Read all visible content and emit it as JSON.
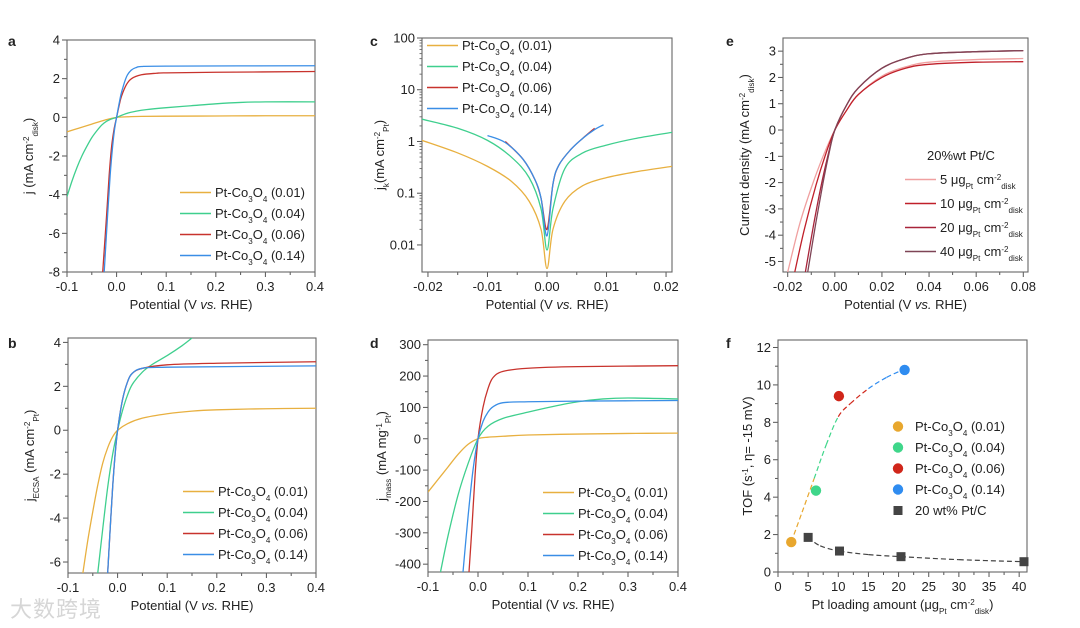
{
  "watermark": "大数跨境",
  "chart_data": [
    {
      "id": "a",
      "panel_label": "a",
      "type": "line",
      "xlabel": "Potential (V ~{vs.} RHE)",
      "ylabel": "j (mA cm^{-2}_{disk})",
      "xlim": [
        -0.1,
        0.4
      ],
      "ylim": [
        -8,
        4
      ],
      "yscale": "linear",
      "xticks": [
        -0.1,
        0.0,
        0.1,
        0.2,
        0.3,
        0.4
      ],
      "xtick_labels": [
        "-0.1",
        "0.0",
        "0.1",
        "0.2",
        "0.3",
        "0.4"
      ],
      "yticks": [
        -8,
        -6,
        -4,
        -2,
        0,
        2,
        4
      ],
      "ytick_labels": [
        "-8",
        "-6",
        "-4",
        "-2",
        "0",
        "2",
        "4"
      ],
      "legend_placement": "bottom-right",
      "series": [
        {
          "name": "Pt-Co_{3}O_{4} (0.01)",
          "color": "#e8b040",
          "x": [
            -0.1,
            -0.075,
            -0.05,
            -0.025,
            0,
            0.025,
            0.05,
            0.1,
            0.2,
            0.3,
            0.4
          ],
          "y": [
            -0.75,
            -0.55,
            -0.35,
            -0.15,
            0,
            0.03,
            0.05,
            0.06,
            0.07,
            0.08,
            0.08
          ]
        },
        {
          "name": "Pt-Co_{3}O_{4} (0.04)",
          "color": "#3fcf8e",
          "x": [
            -0.1,
            -0.09,
            -0.08,
            -0.07,
            -0.06,
            -0.05,
            -0.04,
            -0.03,
            -0.02,
            -0.01,
            0,
            0.02,
            0.04,
            0.06,
            0.1,
            0.15,
            0.2,
            0.25,
            0.3,
            0.4
          ],
          "y": [
            -4.1,
            -3.3,
            -2.6,
            -2.0,
            -1.5,
            -1.05,
            -0.7,
            -0.4,
            -0.2,
            -0.08,
            0,
            0.2,
            0.32,
            0.4,
            0.5,
            0.6,
            0.7,
            0.77,
            0.8,
            0.8
          ]
        },
        {
          "name": "Pt-Co_{3}O_{4} (0.06)",
          "color": "#c8332d",
          "x": [
            -0.028,
            -0.02,
            -0.015,
            -0.01,
            -0.005,
            0,
            0.005,
            0.01,
            0.02,
            0.03,
            0.05,
            0.08,
            0.1,
            0.2,
            0.4
          ],
          "y": [
            -8,
            -5,
            -3,
            -1.5,
            -0.6,
            0,
            0.6,
            1.1,
            1.7,
            2.0,
            2.2,
            2.28,
            2.3,
            2.33,
            2.37
          ]
        },
        {
          "name": "Pt-Co_{3}O_{4} (0.14)",
          "color": "#3a8ee6",
          "x": [
            -0.025,
            -0.018,
            -0.013,
            -0.008,
            -0.004,
            0,
            0.005,
            0.01,
            0.02,
            0.03,
            0.04,
            0.05,
            0.1,
            0.4
          ],
          "y": [
            -8,
            -5,
            -3,
            -1.5,
            -0.6,
            0,
            0.7,
            1.3,
            2.1,
            2.45,
            2.58,
            2.63,
            2.65,
            2.67
          ]
        }
      ]
    },
    {
      "id": "b",
      "panel_label": "b",
      "type": "line",
      "xlabel": "Potential (V ~{vs.} RHE)",
      "ylabel": "j_{ECSA} (mA cm^{-2}_{Pt})",
      "xlim": [
        -0.1,
        0.4
      ],
      "ylim": [
        -6.5,
        4.2
      ],
      "yscale": "linear",
      "xticks": [
        -0.1,
        0.0,
        0.1,
        0.2,
        0.3,
        0.4
      ],
      "xtick_labels": [
        "-0.1",
        "0.0",
        "0.1",
        "0.2",
        "0.3",
        "0.4"
      ],
      "yticks": [
        -6,
        -4,
        -2,
        0,
        2,
        4
      ],
      "ytick_labels": [
        "-6",
        "-4",
        "-2",
        "0",
        "2",
        "4"
      ],
      "legend_placement": "bottom-right",
      "series": [
        {
          "name": "Pt-Co_{3}O_{4} (0.01)",
          "color": "#e8b040",
          "x": [
            -0.07,
            -0.06,
            -0.05,
            -0.04,
            -0.03,
            -0.02,
            -0.01,
            0,
            0.02,
            0.05,
            0.1,
            0.15,
            0.2,
            0.3,
            0.4
          ],
          "y": [
            -6.5,
            -5,
            -3.7,
            -2.5,
            -1.5,
            -0.8,
            -0.3,
            0,
            0.3,
            0.55,
            0.75,
            0.87,
            0.93,
            0.98,
            1.0
          ]
        },
        {
          "name": "Pt-Co_{3}O_{4} (0.04)",
          "color": "#3fcf8e",
          "x": [
            -0.04,
            -0.03,
            -0.02,
            -0.01,
            0,
            0.01,
            0.02,
            0.03,
            0.05,
            0.07,
            0.1,
            0.13,
            0.15
          ],
          "y": [
            -6.5,
            -4.5,
            -2.6,
            -1.1,
            0,
            0.9,
            1.6,
            2.1,
            2.65,
            3.0,
            3.4,
            3.85,
            4.2
          ]
        },
        {
          "name": "Pt-Co_{3}O_{4} (0.06)",
          "color": "#c8332d",
          "x": [
            -0.02,
            -0.015,
            -0.01,
            -0.005,
            0,
            0.01,
            0.02,
            0.03,
            0.05,
            0.1,
            0.2,
            0.4
          ],
          "y": [
            -6.5,
            -4.5,
            -2.6,
            -1.1,
            0,
            1.4,
            2.2,
            2.6,
            2.82,
            2.98,
            3.05,
            3.12
          ]
        },
        {
          "name": "Pt-Co_{3}O_{4} (0.14)",
          "color": "#3a8ee6",
          "x": [
            -0.02,
            -0.015,
            -0.01,
            -0.005,
            0,
            0.01,
            0.02,
            0.03,
            0.05,
            0.1,
            0.4
          ],
          "y": [
            -6.5,
            -4.5,
            -2.6,
            -1.1,
            0,
            1.4,
            2.2,
            2.6,
            2.82,
            2.87,
            2.93
          ]
        }
      ]
    },
    {
      "id": "c",
      "panel_label": "c",
      "type": "line",
      "xlabel": "Potential (V ~{vs.} RHE)",
      "ylabel": "j_{k}(mA cm^{-2}_{Pt})",
      "xlim": [
        -0.021,
        0.021
      ],
      "ylim": [
        0.003,
        100
      ],
      "yscale": "log",
      "xticks": [
        -0.02,
        -0.01,
        0,
        0.01,
        0.02
      ],
      "xtick_labels": [
        "-0.02",
        "-0.01",
        "0.00",
        "0.01",
        "0.02"
      ],
      "yticks": [
        0.01,
        0.1,
        1,
        10,
        100
      ],
      "ytick_labels": [
        "0.01",
        "0.1",
        "1",
        "10",
        "100"
      ],
      "legend_placement": "top-left",
      "series": [
        {
          "name": "Pt-Co_{3}O_{4} (0.01)",
          "color": "#e8b040",
          "x": [
            -0.021,
            -0.015,
            -0.01,
            -0.006,
            -0.003,
            -0.001,
            0,
            0.001,
            0.003,
            0.006,
            0.01,
            0.015,
            0.021
          ],
          "y": [
            1.05,
            0.6,
            0.33,
            0.17,
            0.07,
            0.02,
            0.0035,
            0.02,
            0.07,
            0.14,
            0.2,
            0.26,
            0.33
          ]
        },
        {
          "name": "Pt-Co_{3}O_{4} (0.04)",
          "color": "#3fcf8e",
          "x": [
            -0.021,
            -0.015,
            -0.01,
            -0.006,
            -0.003,
            -0.001,
            0,
            0.001,
            0.003,
            0.006,
            0.01,
            0.015,
            0.021
          ],
          "y": [
            2.7,
            1.8,
            1.05,
            0.5,
            0.2,
            0.05,
            0.008,
            0.05,
            0.3,
            0.6,
            0.85,
            1.15,
            1.5
          ]
        },
        {
          "name": "Pt-Co_{3}O_{4} (0.06)",
          "color": "#c8332d",
          "x": [
            -0.007,
            -0.004,
            -0.002,
            -0.001,
            0,
            0.001,
            0.002,
            0.004,
            0.006,
            0.008
          ],
          "y": [
            1.0,
            0.45,
            0.18,
            0.08,
            0.02,
            0.15,
            0.35,
            0.7,
            1.15,
            1.8
          ]
        },
        {
          "name": "Pt-Co_{3}O_{4} (0.14)",
          "color": "#3a8ee6",
          "x": [
            -0.01,
            -0.007,
            -0.004,
            -0.002,
            -0.001,
            0,
            0.001,
            0.002,
            0.004,
            0.006,
            0.008,
            0.0095
          ],
          "y": [
            1.3,
            0.95,
            0.45,
            0.18,
            0.08,
            0.015,
            0.15,
            0.35,
            0.7,
            1.15,
            1.7,
            2.1
          ]
        }
      ]
    },
    {
      "id": "d",
      "panel_label": "d",
      "type": "line",
      "xlabel": "Potential (V ~{vs.} RHE)",
      "ylabel": "j_{mass} (mA mg^{-1}_{Pt})",
      "xlim": [
        -0.1,
        0.4
      ],
      "ylim": [
        -425,
        315
      ],
      "yscale": "linear",
      "xticks": [
        -0.1,
        0.0,
        0.1,
        0.2,
        0.3,
        0.4
      ],
      "xtick_labels": [
        "-0.1",
        "0.0",
        "0.1",
        "0.2",
        "0.3",
        "0.4"
      ],
      "yticks": [
        -400,
        -300,
        -200,
        -100,
        0,
        100,
        200,
        300
      ],
      "ytick_labels": [
        "-400",
        "-300",
        "-200",
        "-100",
        "0",
        "100",
        "200",
        "300"
      ],
      "legend_placement": "bottom-right",
      "series": [
        {
          "name": "Pt-Co_{3}O_{4} (0.01)",
          "color": "#e8b040",
          "x": [
            -0.1,
            -0.08,
            -0.06,
            -0.04,
            -0.02,
            0,
            0.02,
            0.05,
            0.1,
            0.2,
            0.3,
            0.4
          ],
          "y": [
            -170,
            -130,
            -90,
            -50,
            -18,
            0,
            5,
            8,
            12,
            15,
            17,
            18
          ]
        },
        {
          "name": "Pt-Co_{3}O_{4} (0.04)",
          "color": "#3fcf8e",
          "x": [
            -0.075,
            -0.06,
            -0.04,
            -0.02,
            0,
            0.02,
            0.05,
            0.1,
            0.15,
            0.2,
            0.25,
            0.3,
            0.4
          ],
          "y": [
            -425,
            -310,
            -180,
            -80,
            0,
            40,
            65,
            85,
            103,
            118,
            127,
            130,
            127
          ]
        },
        {
          "name": "Pt-Co_{3}O_{4} (0.06)",
          "color": "#c8332d",
          "x": [
            -0.018,
            -0.012,
            -0.006,
            0,
            0.01,
            0.02,
            0.03,
            0.05,
            0.1,
            0.2,
            0.4
          ],
          "y": [
            -425,
            -280,
            -120,
            0,
            100,
            160,
            195,
            215,
            225,
            230,
            233
          ]
        },
        {
          "name": "Pt-Co_{3}O_{4} (0.14)",
          "color": "#3a8ee6",
          "x": [
            -0.03,
            -0.02,
            -0.01,
            0,
            0.01,
            0.02,
            0.03,
            0.05,
            0.1,
            0.2,
            0.4
          ],
          "y": [
            -425,
            -250,
            -100,
            0,
            55,
            85,
            102,
            115,
            118,
            120,
            122
          ]
        }
      ]
    },
    {
      "id": "e",
      "panel_label": "e",
      "type": "line",
      "xlabel": "Potential (V ~{vs.} RHE)",
      "ylabel": "Current density (mA cm^{-2}_{disk})",
      "xlim": [
        -0.022,
        0.082
      ],
      "ylim": [
        -5.4,
        3.5
      ],
      "yscale": "linear",
      "xticks": [
        -0.02,
        0,
        0.02,
        0.04,
        0.06,
        0.08
      ],
      "xtick_labels": [
        "-0.02",
        "0.00",
        "0.02",
        "0.04",
        "0.06",
        "0.08"
      ],
      "yticks": [
        -5,
        -4,
        -3,
        -2,
        -1,
        0,
        1,
        2,
        3
      ],
      "ytick_labels": [
        "-5",
        "-4",
        "-3",
        "-2",
        "-1",
        "0",
        "1",
        "2",
        "3"
      ],
      "legend_title": "20%wt Pt/C",
      "legend_placement": "right",
      "series": [
        {
          "name": "5 μg_{Pt} cm^{-2}_{disk}",
          "color": "#f0a0a0",
          "x": [
            -0.02,
            -0.015,
            -0.01,
            -0.005,
            0,
            0.005,
            0.01,
            0.02,
            0.03,
            0.04,
            0.06,
            0.08
          ],
          "y": [
            -5.4,
            -3.6,
            -2.2,
            -1.0,
            0,
            0.75,
            1.35,
            2.05,
            2.4,
            2.58,
            2.68,
            2.72
          ]
        },
        {
          "name": "10 μg_{Pt} cm^{-2}_{disk}",
          "color": "#c0202a",
          "x": [
            -0.017,
            -0.013,
            -0.008,
            -0.004,
            0,
            0.005,
            0.01,
            0.02,
            0.03,
            0.04,
            0.06,
            0.08
          ],
          "y": [
            -5.4,
            -3.8,
            -2.1,
            -0.95,
            0,
            0.75,
            1.35,
            2.0,
            2.35,
            2.5,
            2.58,
            2.6
          ]
        },
        {
          "name": "20 μg_{Pt} cm^{-2}_{disk}",
          "color": "#a8243a",
          "x": [
            -0.0125,
            -0.009,
            -0.006,
            -0.003,
            0,
            0.005,
            0.01,
            0.02,
            0.03,
            0.04,
            0.06,
            0.08
          ],
          "y": [
            -5.4,
            -3.6,
            -2.2,
            -1.0,
            0,
            0.95,
            1.6,
            2.35,
            2.72,
            2.9,
            2.98,
            3.02
          ]
        },
        {
          "name": "40 μg_{Pt} cm^{-2}_{disk}",
          "color": "#7e4456",
          "x": [
            -0.0115,
            -0.008,
            -0.005,
            -0.0025,
            0,
            0.005,
            0.01,
            0.02,
            0.03,
            0.04,
            0.06,
            0.08
          ],
          "y": [
            -5.4,
            -3.5,
            -2.0,
            -0.9,
            0,
            0.95,
            1.6,
            2.35,
            2.72,
            2.9,
            2.98,
            3.02
          ]
        }
      ]
    },
    {
      "id": "f",
      "panel_label": "f",
      "type": "scatter",
      "xlabel": "Pt loading amount (μg_{Pt} cm^{-2}_{disk})",
      "ylabel": "TOF (s^{-1}, η= -15 mV)",
      "xlim": [
        0,
        41.3
      ],
      "ylim": [
        0,
        12.4
      ],
      "yscale": "linear",
      "xticks": [
        0,
        5,
        10,
        15,
        20,
        25,
        30,
        35,
        40
      ],
      "xtick_labels": [
        "0",
        "5",
        "10",
        "15",
        "20",
        "25",
        "30",
        "35",
        "40"
      ],
      "yticks": [
        0,
        2,
        4,
        6,
        8,
        10,
        12
      ],
      "ytick_labels": [
        "0",
        "2",
        "4",
        "6",
        "8",
        "10",
        "12"
      ],
      "legend_placement": "right",
      "series": [
        {
          "name": "Pt-Co_{3}O_{4} (0.01)",
          "color": "#e8a72e",
          "marker": "circle",
          "x": [
            2.2
          ],
          "y": [
            1.6
          ]
        },
        {
          "name": "Pt-Co_{3}O_{4} (0.04)",
          "color": "#3fd68a",
          "marker": "circle",
          "x": [
            6.3
          ],
          "y": [
            4.35
          ]
        },
        {
          "name": "Pt-Co_{3}O_{4} (0.06)",
          "color": "#d0261a",
          "marker": "circle",
          "x": [
            10.1
          ],
          "y": [
            9.4
          ]
        },
        {
          "name": "Pt-Co_{3}O_{4} (0.14)",
          "color": "#2f8cf0",
          "marker": "circle",
          "x": [
            21.0
          ],
          "y": [
            10.8
          ]
        },
        {
          "name": "20 wt% Pt/C",
          "color": "#444444",
          "marker": "square",
          "x": [
            5.0,
            10.2,
            20.4,
            40.8
          ],
          "y": [
            1.85,
            1.12,
            0.82,
            0.55
          ]
        }
      ],
      "fits": [
        {
          "name": "Pt-Co3O4 fit",
          "style": "dashed",
          "colors": [
            "#e8a72e",
            "#3fd68a",
            "#d0261a",
            "#2f8cf0"
          ],
          "x": [
            2.2,
            4,
            6,
            8,
            10,
            12,
            15,
            18,
            21
          ],
          "y": [
            1.6,
            3.2,
            5.0,
            6.8,
            8.3,
            9.0,
            9.8,
            10.4,
            10.85
          ]
        },
        {
          "name": "Pt/C fit",
          "style": "dashed",
          "colors": [
            "#444444"
          ],
          "x": [
            5,
            7,
            10.2,
            15,
            20.4,
            30,
            40.8
          ],
          "y": [
            1.85,
            1.4,
            1.12,
            0.93,
            0.82,
            0.66,
            0.55
          ]
        }
      ]
    }
  ]
}
